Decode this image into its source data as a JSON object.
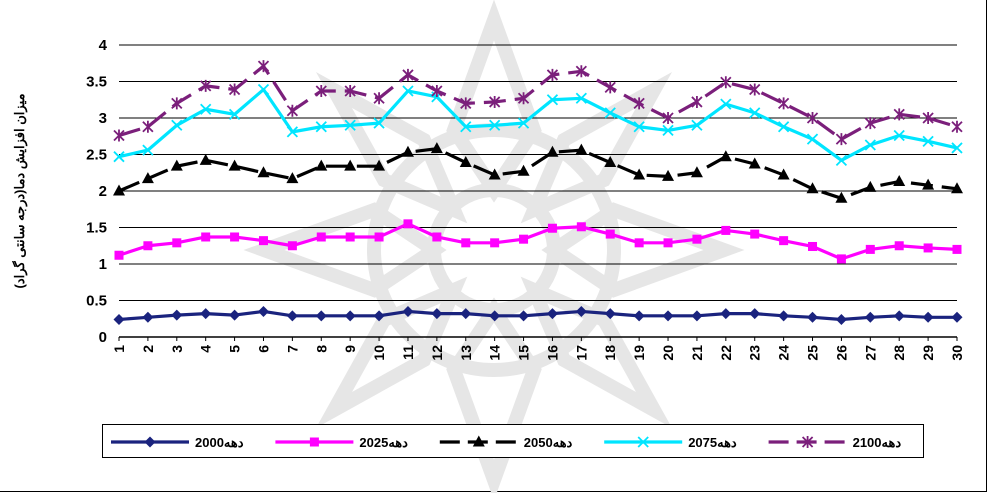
{
  "chart_data": {
    "type": "line",
    "ylabel": "میزان افزایش دما(درجه سانتی گراد)",
    "xlabel": "",
    "title": "",
    "ylim": [
      0,
      4
    ],
    "y_ticks": [
      "0",
      "0.5",
      "1",
      "1.5",
      "2",
      "2.5",
      "3",
      "3.5",
      "4"
    ],
    "categories": [
      "1",
      "2",
      "3",
      "4",
      "5",
      "6",
      "7",
      "8",
      "9",
      "10",
      "11",
      "12",
      "13",
      "14",
      "15",
      "16",
      "17",
      "18",
      "19",
      "20",
      "21",
      "22",
      "23",
      "24",
      "25",
      "26",
      "27",
      "28",
      "29",
      "30"
    ],
    "grid": true,
    "legend_position": "bottom",
    "series": [
      {
        "name": "دهه2000",
        "color": "#1a237e",
        "marker": "diamond",
        "dash": "solid",
        "values": [
          0.24,
          0.27,
          0.3,
          0.32,
          0.3,
          0.35,
          0.29,
          0.29,
          0.29,
          0.29,
          0.35,
          0.32,
          0.32,
          0.29,
          0.29,
          0.32,
          0.35,
          0.32,
          0.29,
          0.29,
          0.29,
          0.32,
          0.32,
          0.29,
          0.27,
          0.24,
          0.27,
          0.29,
          0.27,
          0.27
        ]
      },
      {
        "name": "دهه2025",
        "color": "#ff00ff",
        "marker": "square",
        "dash": "solid",
        "values": [
          1.12,
          1.25,
          1.29,
          1.37,
          1.37,
          1.32,
          1.25,
          1.37,
          1.37,
          1.37,
          1.55,
          1.37,
          1.29,
          1.29,
          1.34,
          1.49,
          1.51,
          1.41,
          1.29,
          1.29,
          1.34,
          1.46,
          1.41,
          1.32,
          1.24,
          1.07,
          1.2,
          1.25,
          1.22,
          1.2
        ]
      },
      {
        "name": "دهه2050",
        "color": "#000000",
        "marker": "triangle",
        "dash": "dash",
        "values": [
          2.0,
          2.17,
          2.34,
          2.42,
          2.34,
          2.25,
          2.17,
          2.34,
          2.34,
          2.34,
          2.53,
          2.58,
          2.39,
          2.22,
          2.27,
          2.53,
          2.56,
          2.39,
          2.22,
          2.2,
          2.25,
          2.47,
          2.37,
          2.22,
          2.03,
          1.9,
          2.05,
          2.13,
          2.08,
          2.03
        ]
      },
      {
        "name": "دهه2075",
        "color": "#00e5ff",
        "marker": "x",
        "dash": "solid",
        "values": [
          2.47,
          2.56,
          2.9,
          3.12,
          3.05,
          3.39,
          2.81,
          2.88,
          2.9,
          2.93,
          3.37,
          3.29,
          2.88,
          2.9,
          2.93,
          3.25,
          3.27,
          3.07,
          2.88,
          2.83,
          2.9,
          3.19,
          3.07,
          2.88,
          2.71,
          2.42,
          2.63,
          2.76,
          2.68,
          2.59
        ]
      },
      {
        "name": "دهه2100",
        "color": "#7b1f7b",
        "marker": "asterisk",
        "dash": "dash",
        "values": [
          2.76,
          2.88,
          3.2,
          3.44,
          3.39,
          3.71,
          3.1,
          3.37,
          3.37,
          3.27,
          3.59,
          3.37,
          3.2,
          3.22,
          3.27,
          3.59,
          3.64,
          3.42,
          3.2,
          3.0,
          3.22,
          3.49,
          3.39,
          3.2,
          3.0,
          2.71,
          2.93,
          3.05,
          3.0,
          2.88
        ]
      }
    ]
  }
}
